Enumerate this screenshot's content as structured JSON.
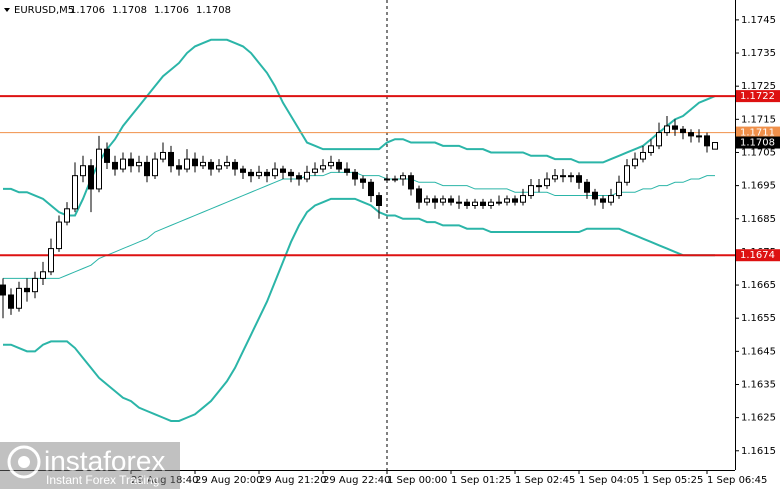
{
  "chart_data": {
    "type": "candlestick",
    "title": "EURUSD,M5",
    "header_ohlc": [
      1.1706,
      1.1708,
      1.1706,
      1.1708
    ],
    "ylim": [
      1.16092,
      1.1751
    ],
    "yticks": [
      1.1745,
      1.1735,
      1.1725,
      1.1715,
      1.1705,
      1.1695,
      1.1685,
      1.1675,
      1.1665,
      1.1655,
      1.1645,
      1.1635,
      1.1625,
      1.1615
    ],
    "categories": [
      null,
      null,
      null,
      null,
      null,
      null,
      null,
      null,
      null,
      null,
      null,
      null,
      null,
      null,
      null,
      null,
      "29 Aug 18:40",
      null,
      null,
      null,
      null,
      null,
      null,
      null,
      "29 Aug 20:00",
      null,
      null,
      null,
      null,
      null,
      null,
      null,
      "29 Aug 21:20",
      null,
      null,
      null,
      null,
      null,
      null,
      null,
      "29 Aug 22:40",
      null,
      null,
      null,
      null,
      null,
      null,
      null,
      "1 Sep 00:00",
      null,
      null,
      null,
      null,
      null,
      null,
      null,
      "1 Sep 01:25",
      null,
      null,
      null,
      null,
      null,
      null,
      null,
      "1 Sep 02:45",
      null,
      null,
      null,
      null,
      null,
      null,
      null,
      "1 Sep 04:05",
      null,
      null,
      null,
      null,
      null,
      null,
      null,
      "1 Sep 05:25",
      null,
      null,
      null,
      null,
      null,
      null,
      null,
      "1 Sep 06:45",
      null
    ],
    "candles": [
      [
        1.1665,
        1.1667,
        1.1655,
        1.1662
      ],
      [
        1.1662,
        1.1664,
        1.1656,
        1.1658
      ],
      [
        1.1658,
        1.1666,
        1.1657,
        1.1664
      ],
      [
        1.1664,
        1.1667,
        1.166,
        1.1663
      ],
      [
        1.1663,
        1.1669,
        1.1661,
        1.1667
      ],
      [
        1.1667,
        1.1672,
        1.1665,
        1.1669
      ],
      [
        1.1669,
        1.1679,
        1.1668,
        1.1676
      ],
      [
        1.1676,
        1.1686,
        1.1675,
        1.1684
      ],
      [
        1.1684,
        1.169,
        1.1683,
        1.1688
      ],
      [
        1.1688,
        1.1702,
        1.1687,
        1.1698
      ],
      [
        1.1698,
        1.1704,
        1.1696,
        1.1701
      ],
      [
        1.1701,
        1.1703,
        1.1687,
        1.1694
      ],
      [
        1.1694,
        1.171,
        1.1693,
        1.1706
      ],
      [
        1.1706,
        1.1708,
        1.17,
        1.1702
      ],
      [
        1.1702,
        1.1704,
        1.1698,
        1.17
      ],
      [
        1.17,
        1.1705,
        1.1699,
        1.1703
      ],
      [
        1.1703,
        1.1705,
        1.1699,
        1.1701
      ],
      [
        1.1701,
        1.1704,
        1.1699,
        1.1702
      ],
      [
        1.1702,
        1.1704,
        1.1696,
        1.1698
      ],
      [
        1.1698,
        1.1705,
        1.1697,
        1.1703
      ],
      [
        1.1703,
        1.1708,
        1.1702,
        1.1705
      ],
      [
        1.1705,
        1.1707,
        1.1699,
        1.1701
      ],
      [
        1.1701,
        1.1703,
        1.1698,
        1.17
      ],
      [
        1.17,
        1.1706,
        1.1699,
        1.1703
      ],
      [
        1.1703,
        1.1705,
        1.1699,
        1.1701
      ],
      [
        1.1701,
        1.1704,
        1.17,
        1.1702
      ],
      [
        1.1702,
        1.1703,
        1.1698,
        1.17
      ],
      [
        1.17,
        1.1703,
        1.1699,
        1.1701
      ],
      [
        1.1701,
        1.1704,
        1.17,
        1.1702
      ],
      [
        1.1702,
        1.1703,
        1.1698,
        1.17
      ],
      [
        1.17,
        1.1701,
        1.1697,
        1.1699
      ],
      [
        1.1699,
        1.17,
        1.1696,
        1.1698
      ],
      [
        1.1698,
        1.1701,
        1.1697,
        1.1699
      ],
      [
        1.1699,
        1.17,
        1.1696,
        1.1698
      ],
      [
        1.1698,
        1.1702,
        1.1697,
        1.17
      ],
      [
        1.17,
        1.1701,
        1.1697,
        1.1699
      ],
      [
        1.1699,
        1.17,
        1.1696,
        1.1698
      ],
      [
        1.1698,
        1.1699,
        1.1695,
        1.1697
      ],
      [
        1.1697,
        1.1701,
        1.1696,
        1.1699
      ],
      [
        1.1699,
        1.1702,
        1.1698,
        1.17
      ],
      [
        1.17,
        1.1703,
        1.1699,
        1.1701
      ],
      [
        1.1701,
        1.1704,
        1.17,
        1.1702
      ],
      [
        1.1702,
        1.1703,
        1.1699,
        1.17
      ],
      [
        1.17,
        1.1702,
        1.1698,
        1.1699
      ],
      [
        1.1699,
        1.17,
        1.1695,
        1.1697
      ],
      [
        1.1697,
        1.1698,
        1.1694,
        1.1696
      ],
      [
        1.1696,
        1.1697,
        1.169,
        1.1692
      ],
      [
        1.1692,
        1.1693,
        1.1685,
        1.1689
      ],
      [
        1.1697,
        1.1698,
        1.1696,
        1.1697
      ],
      [
        1.1697,
        1.1698,
        1.1696,
        1.1697
      ],
      [
        1.1697,
        1.1699,
        1.1695,
        1.1698
      ],
      [
        1.1698,
        1.1699,
        1.1692,
        1.1694
      ],
      [
        1.1694,
        1.1695,
        1.1688,
        1.169
      ],
      [
        1.169,
        1.1692,
        1.1689,
        1.1691
      ],
      [
        1.1691,
        1.1692,
        1.1688,
        1.169
      ],
      [
        1.169,
        1.1692,
        1.1689,
        1.1691
      ],
      [
        1.1691,
        1.1692,
        1.1689,
        1.169
      ],
      [
        1.169,
        1.1692,
        1.1688,
        1.169
      ],
      [
        1.169,
        1.1691,
        1.1688,
        1.1689
      ],
      [
        1.1689,
        1.1691,
        1.1688,
        1.169
      ],
      [
        1.169,
        1.1691,
        1.1688,
        1.1689
      ],
      [
        1.1689,
        1.1691,
        1.1688,
        1.169
      ],
      [
        1.169,
        1.1692,
        1.1689,
        1.169
      ],
      [
        1.169,
        1.1692,
        1.1689,
        1.1691
      ],
      [
        1.1691,
        1.1692,
        1.1689,
        1.169
      ],
      [
        1.169,
        1.1694,
        1.1689,
        1.1692
      ],
      [
        1.1692,
        1.1697,
        1.1691,
        1.1695
      ],
      [
        1.1695,
        1.1697,
        1.1693,
        1.1695
      ],
      [
        1.1695,
        1.1699,
        1.1694,
        1.1697
      ],
      [
        1.1697,
        1.17,
        1.1696,
        1.1698
      ],
      [
        1.1698,
        1.17,
        1.1696,
        1.1698
      ],
      [
        1.1698,
        1.1699,
        1.1696,
        1.1698
      ],
      [
        1.1698,
        1.1699,
        1.1694,
        1.1696
      ],
      [
        1.1696,
        1.1697,
        1.1691,
        1.1693
      ],
      [
        1.1693,
        1.1694,
        1.1689,
        1.1691
      ],
      [
        1.1691,
        1.1692,
        1.1688,
        1.169
      ],
      [
        1.169,
        1.1694,
        1.1689,
        1.1692
      ],
      [
        1.1692,
        1.1698,
        1.1691,
        1.1696
      ],
      [
        1.1696,
        1.1703,
        1.1695,
        1.1701
      ],
      [
        1.1701,
        1.1705,
        1.17,
        1.1703
      ],
      [
        1.1703,
        1.1707,
        1.1702,
        1.1705
      ],
      [
        1.1705,
        1.1709,
        1.1704,
        1.1707
      ],
      [
        1.1707,
        1.1714,
        1.1706,
        1.1711
      ],
      [
        1.1711,
        1.1716,
        1.171,
        1.1713
      ],
      [
        1.1713,
        1.1715,
        1.171,
        1.1712
      ],
      [
        1.1712,
        1.1713,
        1.1709,
        1.1711
      ],
      [
        1.1711,
        1.1712,
        1.1708,
        1.171
      ],
      [
        1.171,
        1.1712,
        1.1708,
        1.171
      ],
      [
        1.171,
        1.1711,
        1.1705,
        1.1707
      ],
      [
        1.1706,
        1.1708,
        1.1706,
        1.1708
      ]
    ],
    "bands": [
      {
        "color": "#2bb5a8",
        "line_width": 2,
        "values": [
          1.1694,
          1.1694,
          1.1693,
          1.1693,
          1.1692,
          1.1691,
          1.1689,
          1.1687,
          1.1686,
          1.1686,
          1.1691,
          1.1697,
          1.1702,
          1.1706,
          1.1709,
          1.1713,
          1.1716,
          1.1719,
          1.1722,
          1.1725,
          1.1728,
          1.173,
          1.1732,
          1.1735,
          1.1737,
          1.1738,
          1.1739,
          1.1739,
          1.1739,
          1.1738,
          1.1737,
          1.1735,
          1.1732,
          1.1729,
          1.1725,
          1.172,
          1.1716,
          1.1712,
          1.1708,
          1.1707,
          1.1706,
          1.1706,
          1.1706,
          1.1706,
          1.1706,
          1.1706,
          1.1706,
          1.1706,
          1.1708,
          1.1709,
          1.1709,
          1.1708,
          1.1708,
          1.1708,
          1.1708,
          1.1707,
          1.1707,
          1.1707,
          1.1706,
          1.1706,
          1.1706,
          1.1705,
          1.1705,
          1.1705,
          1.1705,
          1.1705,
          1.1704,
          1.1704,
          1.1704,
          1.1703,
          1.1703,
          1.1703,
          1.1702,
          1.1702,
          1.1702,
          1.1702,
          1.1703,
          1.1704,
          1.1705,
          1.1706,
          1.1707,
          1.1709,
          1.1711,
          1.1713,
          1.1715,
          1.1716,
          1.1718,
          1.172,
          1.1721,
          1.1722
        ]
      },
      {
        "color": "#2bb5a8",
        "line_width": 1,
        "values": [
          1.1667,
          1.1667,
          1.1667,
          1.1667,
          1.1667,
          1.1667,
          1.1667,
          1.1667,
          1.1668,
          1.1669,
          1.167,
          1.1671,
          1.1673,
          1.1674,
          1.1675,
          1.1676,
          1.1677,
          1.1678,
          1.1679,
          1.1681,
          1.1682,
          1.1683,
          1.1684,
          1.1685,
          1.1686,
          1.1687,
          1.1688,
          1.1689,
          1.169,
          1.1691,
          1.1692,
          1.1693,
          1.1694,
          1.1695,
          1.1696,
          1.1697,
          1.1697,
          1.1697,
          1.1698,
          1.1698,
          1.1698,
          1.1699,
          1.1699,
          1.1699,
          1.1699,
          1.1698,
          1.1698,
          1.1698,
          1.1697,
          1.1697,
          1.1697,
          1.1697,
          1.1696,
          1.1696,
          1.1696,
          1.1695,
          1.1695,
          1.1695,
          1.1695,
          1.1694,
          1.1694,
          1.1694,
          1.1694,
          1.1694,
          1.1693,
          1.1693,
          1.1693,
          1.1693,
          1.1693,
          1.1692,
          1.1692,
          1.1692,
          1.1692,
          1.1692,
          1.1692,
          1.1692,
          1.1692,
          1.1693,
          1.1693,
          1.1693,
          1.1694,
          1.1694,
          1.1695,
          1.1695,
          1.1696,
          1.1696,
          1.1697,
          1.1697,
          1.1698,
          1.1698
        ]
      },
      {
        "color": "#2bb5a8",
        "line_width": 2,
        "values": [
          1.1647,
          1.1647,
          1.1646,
          1.1645,
          1.1645,
          1.1647,
          1.1648,
          1.1648,
          1.1648,
          1.1646,
          1.1643,
          1.164,
          1.1637,
          1.1635,
          1.1633,
          1.1631,
          1.163,
          1.1628,
          1.1627,
          1.1626,
          1.1625,
          1.1624,
          1.1624,
          1.1625,
          1.1626,
          1.1628,
          1.163,
          1.1633,
          1.1636,
          1.164,
          1.1645,
          1.165,
          1.1655,
          1.166,
          1.1666,
          1.1672,
          1.1678,
          1.1683,
          1.1687,
          1.1689,
          1.169,
          1.1691,
          1.1691,
          1.1691,
          1.1691,
          1.169,
          1.1689,
          1.1687,
          1.1686,
          1.1686,
          1.1685,
          1.1685,
          1.1685,
          1.1684,
          1.1684,
          1.1683,
          1.1683,
          1.1683,
          1.1682,
          1.1682,
          1.1682,
          1.1681,
          1.1681,
          1.1681,
          1.1681,
          1.1681,
          1.1681,
          1.1681,
          1.1681,
          1.1681,
          1.1681,
          1.1681,
          1.1681,
          1.1682,
          1.1682,
          1.1682,
          1.1682,
          1.1682,
          1.1681,
          1.168,
          1.1679,
          1.1678,
          1.1677,
          1.1676,
          1.1675,
          1.1674,
          1.1674,
          1.1674,
          1.1674,
          1.1674
        ]
      }
    ],
    "levels": [
      {
        "value": 1.1722,
        "color": "#dd1111",
        "line_width": 2
      },
      {
        "value": 1.1711,
        "color": "#f0904a",
        "line_width": 1
      },
      {
        "value": 1.1674,
        "color": "#dd1111",
        "line_width": 2
      }
    ],
    "last_price": {
      "value": 1.1708,
      "color": "#000000"
    },
    "candle_color": "#000000"
  },
  "brand": {
    "name": "instaforex",
    "tagline": "Instant Forex Trading"
  }
}
